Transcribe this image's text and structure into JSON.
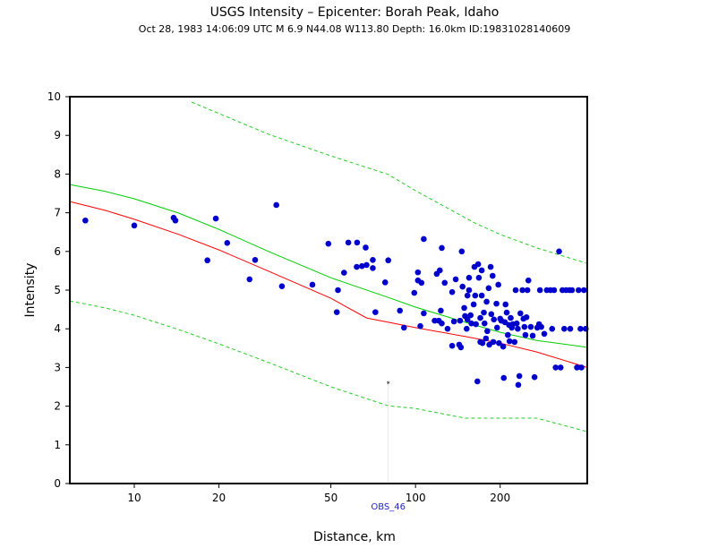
{
  "chart_data": {
    "type": "scatter",
    "title": "USGS Intensity –  Epicenter: Borah Peak, Idaho",
    "subtitle": "Oct 28, 1983 14:06:09 UTC   M 6.9   N44.08 W113.80   Depth: 16.0km   ID:19831028140609",
    "xlabel": "Distance, km",
    "ylabel": "Intensity",
    "xscale": "log",
    "xlim": [
      5.9,
      408
    ],
    "ylim": [
      0,
      10
    ],
    "xticks": [
      10,
      20,
      50,
      100,
      200
    ],
    "yticks": [
      0,
      1,
      2,
      3,
      4,
      5,
      6,
      7,
      8,
      9,
      10
    ],
    "series": [
      {
        "mode": "markers",
        "color": "#0000cc",
        "x": [
          6.7,
          10,
          13.8,
          14,
          19.5,
          18.2,
          21.4,
          26.9,
          25.7,
          32,
          33.5,
          43,
          49,
          52.5,
          53,
          55.7,
          57.7,
          62,
          61.8,
          64.5,
          67,
          66.5,
          70.5,
          70.5,
          72,
          78,
          80,
          88,
          91,
          99,
          102,
          102,
          104,
          105,
          107,
          107,
          117,
          119,
          122,
          124,
          121,
          124,
          123,
          127,
          130,
          135,
          135,
          137,
          139,
          143,
          144,
          145,
          146,
          147,
          149,
          150,
          152,
          153,
          155,
          153,
          155,
          157,
          158,
          161,
          162,
          163,
          164,
          166,
          167,
          168,
          170,
          170,
          172,
          172,
          173,
          175,
          176,
          178,
          179,
          180,
          182,
          183,
          185,
          186,
          188,
          189,
          190,
          194,
          195,
          197,
          198,
          200,
          202,
          205,
          206,
          208,
          209,
          211,
          213,
          215,
          216,
          218,
          220,
          222,
          225,
          227,
          229,
          231,
          232,
          234,
          236,
          240,
          242,
          244,
          246,
          248,
          250,
          252,
          257,
          261,
          265,
          271,
          275,
          277,
          280,
          287,
          293,
          302,
          311,
          306,
          315,
          324,
          328,
          333,
          338,
          343,
          353,
          355,
          360,
          375,
          380,
          386,
          389,
          397,
          403
        ],
        "values": [
          6.8,
          6.67,
          6.87,
          6.8,
          6.85,
          5.77,
          6.22,
          5.78,
          5.28,
          7.2,
          5.1,
          5.14,
          6.2,
          4.43,
          5.0,
          5.45,
          6.23,
          6.23,
          5.6,
          5.62,
          5.65,
          6.1,
          5.78,
          5.57,
          4.43,
          5.2,
          5.77,
          4.47,
          4.03,
          4.93,
          5.46,
          5.25,
          4.07,
          5.19,
          6.32,
          4.4,
          4.21,
          5.42,
          5.51,
          6.09,
          4.21,
          4.14,
          4.47,
          5.19,
          4.0,
          4.95,
          3.56,
          4.19,
          5.28,
          3.59,
          4.21,
          3.52,
          6.0,
          5.09,
          4.54,
          4.33,
          4.0,
          4.24,
          5.32,
          4.86,
          5.0,
          4.35,
          4.14,
          4.63,
          5.6,
          4.86,
          4.12,
          2.64,
          5.67,
          5.32,
          4.28,
          3.66,
          5.51,
          4.86,
          3.63,
          4.42,
          4.14,
          3.75,
          4.7,
          3.94,
          5.05,
          3.59,
          5.6,
          4.38,
          5.37,
          3.66,
          4.24,
          4.65,
          4.03,
          5.14,
          3.63,
          4.26,
          4.21,
          3.54,
          2.73,
          4.17,
          4.63,
          4.42,
          3.84,
          4.1,
          3.68,
          4.28,
          4.03,
          4.12,
          3.66,
          5.0,
          4.14,
          4.0,
          2.55,
          2.78,
          4.4,
          5.0,
          4.26,
          4.05,
          3.84,
          4.3,
          5.0,
          5.25,
          4.05,
          3.82,
          2.75,
          4.03,
          4.12,
          5.0,
          4.05,
          3.87,
          5.0,
          5.0,
          5.0,
          4.0,
          3.0,
          6.0,
          3.0,
          5.0,
          4.0,
          5.0,
          5.0,
          4.0,
          5.0,
          3.0,
          5.0,
          4.0,
          3.0,
          5.0,
          4.0
        ]
      },
      {
        "mode": "line",
        "color": "#00cc00",
        "x": [
          5.9,
          7.9,
          10,
          14.4,
          20,
          30,
          50,
          80,
          100,
          150,
          200,
          270,
          408
        ],
        "values": [
          7.73,
          7.55,
          7.36,
          6.99,
          6.57,
          6.0,
          5.32,
          4.81,
          4.56,
          4.17,
          3.91,
          3.7,
          3.52
        ]
      },
      {
        "mode": "line",
        "color": "#ff0000",
        "x": [
          5.9,
          7.9,
          10,
          14.4,
          20,
          30,
          50,
          67,
          80,
          100,
          150,
          200,
          270,
          408
        ],
        "values": [
          7.29,
          7.06,
          6.83,
          6.44,
          6.04,
          5.49,
          4.79,
          4.28,
          4.17,
          4.03,
          3.8,
          3.63,
          3.4,
          3.0
        ]
      },
      {
        "mode": "line",
        "dash": true,
        "color": "#22cc22",
        "x": [
          16,
          30,
          50,
          80,
          100,
          162,
          200,
          270,
          408
        ],
        "values": [
          9.86,
          9.03,
          8.47,
          7.99,
          7.57,
          6.74,
          6.44,
          6.09,
          5.69
        ]
      },
      {
        "mode": "line",
        "dash": true,
        "color": "#22cc22",
        "x": [
          5.9,
          7.9,
          10,
          14.4,
          20,
          30,
          50,
          80,
          100,
          150,
          200,
          270,
          408
        ],
        "values": [
          4.72,
          4.54,
          4.35,
          3.98,
          3.61,
          3.13,
          2.5,
          2.01,
          1.94,
          1.69,
          1.69,
          1.69,
          1.34
        ]
      }
    ],
    "annotations": [
      {
        "text": "OBS_46",
        "x": 80,
        "y": 2.6,
        "color": "#2222cc"
      }
    ]
  }
}
